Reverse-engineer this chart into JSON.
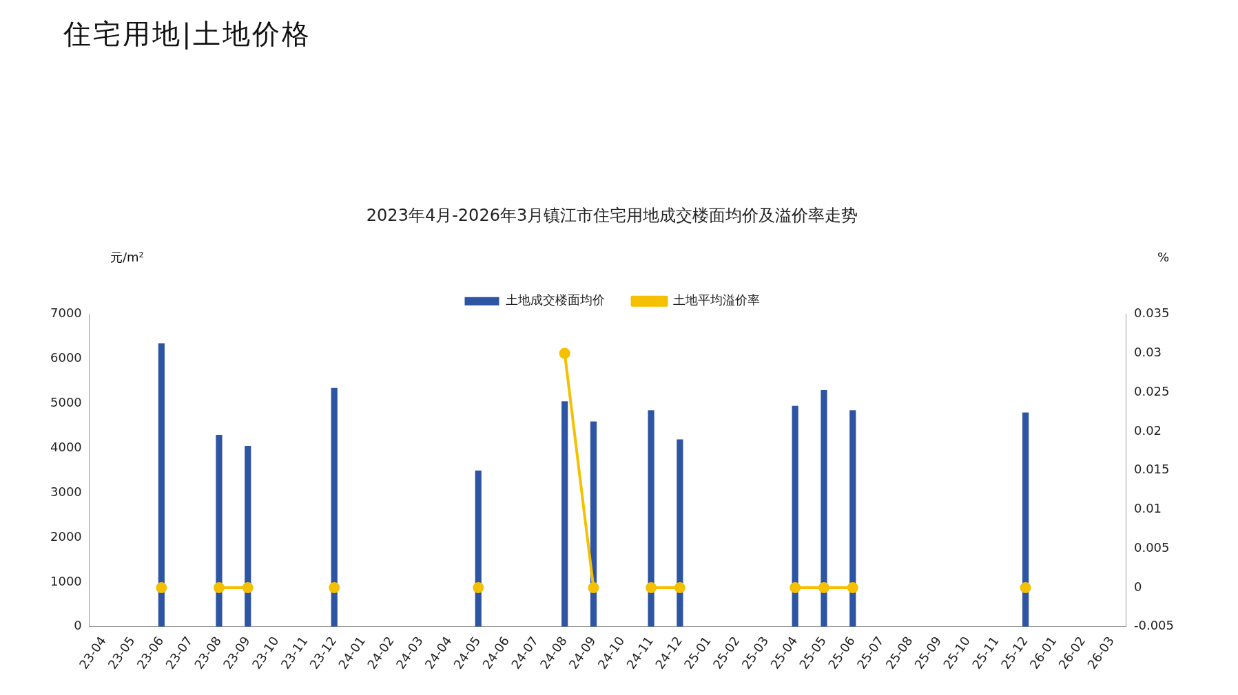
{
  "chart_data": {
    "type": "bar",
    "title": "2023年4月-2026年3月镇江市住宅用地成交楼面均价及溢价率走势",
    "annotations": [
      "住宅用地|土地价格"
    ],
    "ylabel": "元/m²",
    "y2label": "%",
    "categories": [
      "23-04",
      "23-05",
      "23-06",
      "23-07",
      "23-08",
      "23-09",
      "23-10",
      "23-11",
      "23-12",
      "24-01",
      "24-02",
      "24-03",
      "24-04",
      "24-05",
      "24-06",
      "24-07",
      "24-08",
      "24-09",
      "24-10",
      "24-11",
      "24-12",
      "25-01",
      "25-02",
      "25-03",
      "25-04",
      "25-05",
      "25-06",
      "25-07",
      "25-08",
      "25-09",
      "25-10",
      "25-11",
      "25-12",
      "26-01",
      "26-02",
      "26-03"
    ],
    "series": [
      {
        "name": "土地成交楼面均价",
        "color": "#2e54a4",
        "values": [
          null,
          null,
          6350,
          null,
          4300,
          4050,
          null,
          null,
          5350,
          null,
          null,
          null,
          null,
          3500,
          null,
          null,
          5050,
          4600,
          null,
          4850,
          4200,
          null,
          null,
          null,
          4950,
          5300,
          4850,
          null,
          null,
          null,
          null,
          null,
          4800,
          null,
          null,
          null
        ]
      },
      {
        "name": "土地平均溢价率",
        "type": "line",
        "axis": "y2",
        "color": "#f5c000",
        "values": [
          null,
          null,
          0,
          null,
          0,
          0,
          null,
          null,
          0,
          null,
          null,
          null,
          null,
          0,
          null,
          null,
          0.03,
          0,
          null,
          0,
          0,
          null,
          null,
          null,
          0,
          0,
          0,
          null,
          null,
          null,
          null,
          null,
          0,
          null,
          null,
          null
        ]
      }
    ],
    "ylim": [
      0,
      7000
    ],
    "yticks": [
      0,
      1000,
      2000,
      3000,
      4000,
      5000,
      6000,
      7000
    ],
    "y2lim": [
      -0.005,
      0.035
    ],
    "y2ticks": [
      -0.005,
      0,
      0.005,
      0.01,
      0.015,
      0.02,
      0.025,
      0.03,
      0.035
    ],
    "legend": "top",
    "grid": false,
    "marker": "circle",
    "line_style": "solid"
  }
}
